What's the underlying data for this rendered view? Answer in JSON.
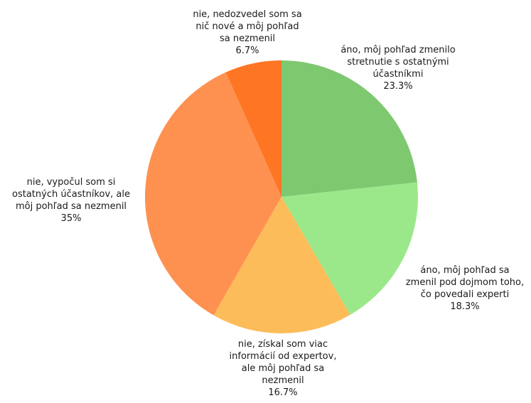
{
  "chart_data": {
    "type": "pie",
    "start_angle_deg": 0,
    "direction": "clockwise",
    "slices": [
      {
        "label": [
          "áno, môj pohľad zmenilo",
          "stretnutie s ostatnými",
          "účastníkmi"
        ],
        "percent_text": "23.3%",
        "value": 23.3,
        "color": "#7ec870"
      },
      {
        "label": [
          "áno, môj pohľad sa",
          "zmenil pod dojmom toho,",
          "čo povedali experti"
        ],
        "percent_text": "18.3%",
        "value": 18.3,
        "color": "#9be88a"
      },
      {
        "label": [
          "nie, získal som viac",
          "informácií od expertov,",
          "ale môj pohľad sa",
          "nezmenil"
        ],
        "percent_text": "16.7%",
        "value": 16.7,
        "color": "#fdbc5a"
      },
      {
        "label": [
          "nie, vypočul som si",
          "ostatných účastníkov, ale",
          "môj pohľad sa nezmenil"
        ],
        "percent_text": "35%",
        "value": 35,
        "color": "#fe9150"
      },
      {
        "label": [
          "nie, nedozvedel som sa",
          "nič nové a môj pohľad",
          "sa nezmenil"
        ],
        "percent_text": "6.7%",
        "value": 6.7,
        "color": "#fe7524"
      }
    ]
  }
}
